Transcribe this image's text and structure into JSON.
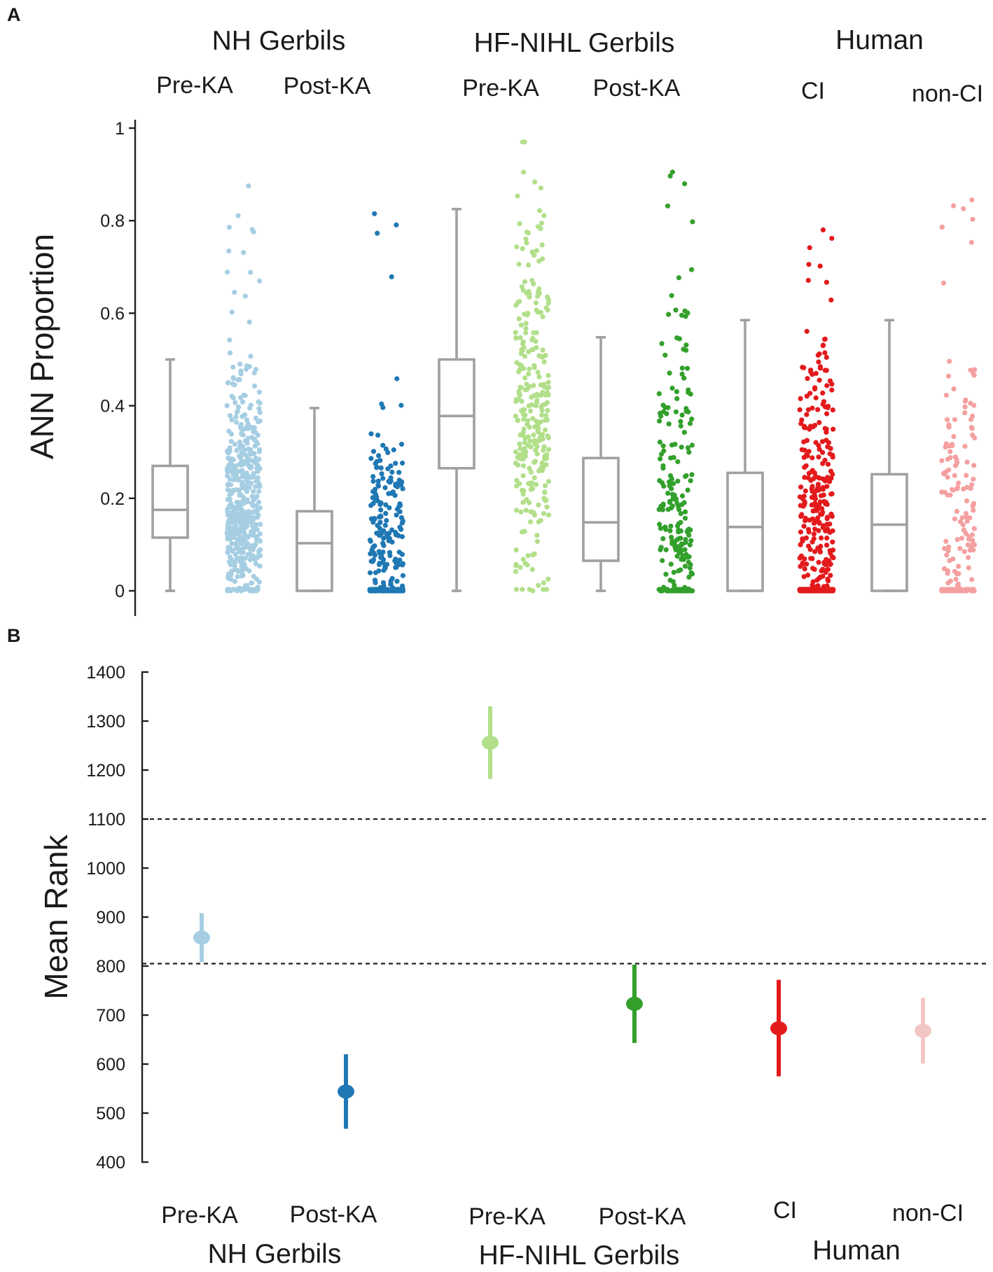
{
  "chart_data": [
    {
      "panel": "A",
      "type": "boxplot+strip",
      "ylabel": "ANN Proportion",
      "ylim": [
        0,
        1
      ],
      "yticks": [
        0,
        0.2,
        0.4,
        0.6,
        0.8,
        1
      ],
      "ytick_labels": [
        "0",
        "0.2",
        "0.4",
        "0.6",
        "0.8",
        "1"
      ],
      "groups": [
        {
          "name": "NH Gerbils",
          "conditions": [
            "Pre-KA",
            "Post-KA"
          ]
        },
        {
          "name": "HF-NIHL Gerbils",
          "conditions": [
            "Pre-KA",
            "Post-KA"
          ]
        },
        {
          "name": "Human",
          "conditions": [
            "CI",
            "non-CI"
          ]
        }
      ],
      "series": [
        {
          "group": "NH Gerbils",
          "name": "Pre-KA",
          "color": "#a6cee3",
          "n": 520,
          "box": {
            "whisker_low": 0,
            "q1": 0.115,
            "median": 0.175,
            "q3": 0.27,
            "whisker_high": 0.5
          },
          "max_outlier": 0.875,
          "zero_fraction": 0.02
        },
        {
          "group": "NH Gerbils",
          "name": "Post-KA",
          "color": "#1f78b4",
          "n": 260,
          "box": {
            "whisker_low": 0,
            "q1": 0,
            "median": 0.103,
            "q3": 0.172,
            "whisker_high": 0.395
          },
          "max_outlier": 0.815,
          "zero_fraction": 0.13
        },
        {
          "group": "HF-NIHL Gerbils",
          "name": "Pre-KA",
          "color": "#b2df8a",
          "n": 300,
          "box": {
            "whisker_low": 0,
            "q1": 0.265,
            "median": 0.378,
            "q3": 0.5,
            "whisker_high": 0.825
          },
          "max_outlier": 0.97,
          "zero_fraction": 0.003
        },
        {
          "group": "HF-NIHL Gerbils",
          "name": "Post-KA",
          "color": "#33a02c",
          "n": 240,
          "box": {
            "whisker_low": 0,
            "q1": 0.065,
            "median": 0.148,
            "q3": 0.287,
            "whisker_high": 0.548
          },
          "max_outlier": 0.905,
          "zero_fraction": 0.12
        },
        {
          "group": "Human",
          "name": "CI",
          "color": "#e31a1c",
          "n": 380,
          "box": {
            "whisker_low": 0,
            "q1": 0,
            "median": 0.138,
            "q3": 0.255,
            "whisker_high": 0.585
          },
          "max_outlier": 0.78,
          "zero_fraction": 0.16
        },
        {
          "group": "Human",
          "name": "non-CI",
          "color": "#f4a0a0",
          "n": 190,
          "box": {
            "whisker_low": 0,
            "q1": 0,
            "median": 0.143,
            "q3": 0.252,
            "whisker_high": 0.585
          },
          "max_outlier": 0.845,
          "zero_fraction": 0.18
        }
      ]
    },
    {
      "panel": "B",
      "type": "errorbar",
      "ylabel": "Mean Rank",
      "ylim": [
        400,
        1400
      ],
      "yticks": [
        400,
        500,
        600,
        700,
        800,
        900,
        1000,
        1100,
        1200,
        1300,
        1400
      ],
      "ytick_labels": [
        "400",
        "500",
        "600",
        "700",
        "800",
        "900",
        "1000",
        "1100",
        "1200",
        "1300",
        "1400"
      ],
      "reference_lines": [
        1100,
        805
      ],
      "groups": [
        {
          "name": "NH Gerbils",
          "conditions": [
            "Pre-KA",
            "Post-KA"
          ]
        },
        {
          "name": "HF-NIHL Gerbils",
          "conditions": [
            "Pre-KA",
            "Post-KA"
          ]
        },
        {
          "name": "Human",
          "conditions": [
            "CI",
            "non-CI"
          ]
        }
      ],
      "series": [
        {
          "group": "NH Gerbils",
          "name": "Pre-KA",
          "color": "#a6cee3",
          "mean": 858,
          "low": 808,
          "high": 908
        },
        {
          "group": "NH Gerbils",
          "name": "Post-KA",
          "color": "#1f78b4",
          "mean": 544,
          "low": 468,
          "high": 620
        },
        {
          "group": "HF-NIHL Gerbils",
          "name": "Pre-KA",
          "color": "#b2df8a",
          "mean": 1256,
          "low": 1182,
          "high": 1330
        },
        {
          "group": "HF-NIHL Gerbils",
          "name": "Post-KA",
          "color": "#33a02c",
          "mean": 723,
          "low": 643,
          "high": 803
        },
        {
          "group": "Human",
          "name": "CI",
          "color": "#e31a1c",
          "mean": 673,
          "low": 575,
          "high": 772
        },
        {
          "group": "Human",
          "name": "non-CI",
          "color": "#f3c6c6",
          "mean": 668,
          "low": 601,
          "high": 735
        }
      ]
    }
  ]
}
